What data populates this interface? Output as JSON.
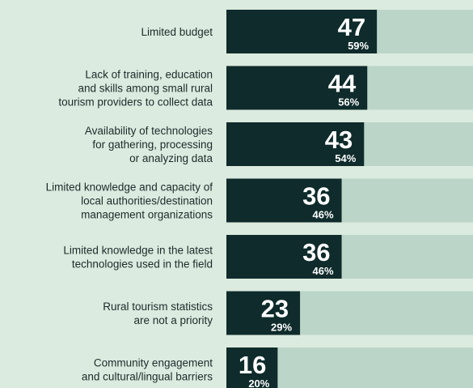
{
  "chart_data": {
    "type": "bar",
    "orientation": "horizontal",
    "categories": [
      [
        "Limited budget"
      ],
      [
        "Lack of training, education",
        "and skills among small rural",
        "tourism providers to collect data"
      ],
      [
        "Availability of technologies",
        "for gathering, processing",
        "or analyzing data"
      ],
      [
        "Limited knowledge and capacity of",
        "local authorities/destination",
        "management organizations"
      ],
      [
        "Limited knowledge in the latest",
        "technologies used in the field"
      ],
      [
        "Rural tourism statistics",
        "are not a priority"
      ],
      [
        "Community engagement",
        "and cultural/lingual barriers"
      ]
    ],
    "values": [
      47,
      44,
      43,
      36,
      36,
      23,
      16
    ],
    "percentages": [
      59,
      56,
      54,
      46,
      46,
      29,
      20
    ],
    "percentage_labels": [
      "59%",
      "56%",
      "54%",
      "46%",
      "46%",
      "29%",
      "20%"
    ],
    "color": "#0f2b2b",
    "track_color": "#bcd5c9"
  }
}
